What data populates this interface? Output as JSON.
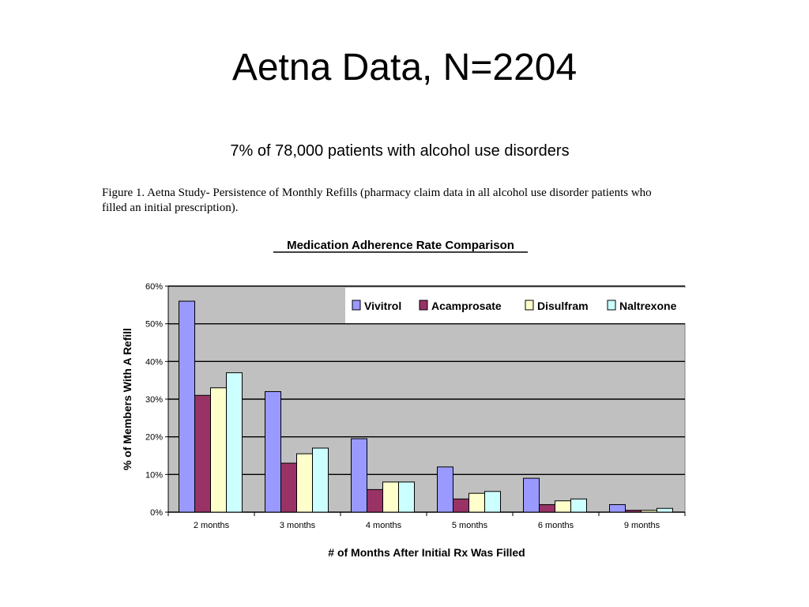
{
  "slide": {
    "title": "Aetna Data, N=2204",
    "subtitle": "7% of 78,000 patients with alcohol use disorders",
    "caption": "Figure 1.  Aetna Study- Persistence of Monthly Refills (pharmacy claim data in all alcohol use disorder patients who filled an initial prescription)."
  },
  "chart_data": {
    "type": "bar",
    "title": "Medication Adherence Rate Comparison",
    "xlabel": "# of Months After Initial Rx Was Filled",
    "ylabel": "% of Members With A Refill",
    "categories": [
      "2 months",
      "3 months",
      "4 months",
      "5 months",
      "6 months",
      "9 months"
    ],
    "ylim": [
      0,
      60
    ],
    "yticks": [
      0,
      10,
      20,
      30,
      40,
      50,
      60
    ],
    "ytick_labels": [
      "0%",
      "10%",
      "20%",
      "30%",
      "40%",
      "50%",
      "60%"
    ],
    "grid": true,
    "legend_position": "top-right",
    "series": [
      {
        "name": "Vivitrol",
        "color": "#9999ff",
        "values": [
          56,
          32,
          19.5,
          12,
          9,
          2
        ]
      },
      {
        "name": "Acamprosate",
        "color": "#993366",
        "values": [
          31,
          13,
          6,
          3.5,
          2,
          0.5
        ]
      },
      {
        "name": "Disulfram",
        "color": "#ffffcc",
        "values": [
          33,
          15.5,
          8,
          5,
          3,
          0.5
        ]
      },
      {
        "name": "Naltrexone",
        "color": "#ccffff",
        "values": [
          37,
          17,
          8,
          5.5,
          3.5,
          1
        ]
      }
    ],
    "plot_background": "#c0c0c0"
  }
}
